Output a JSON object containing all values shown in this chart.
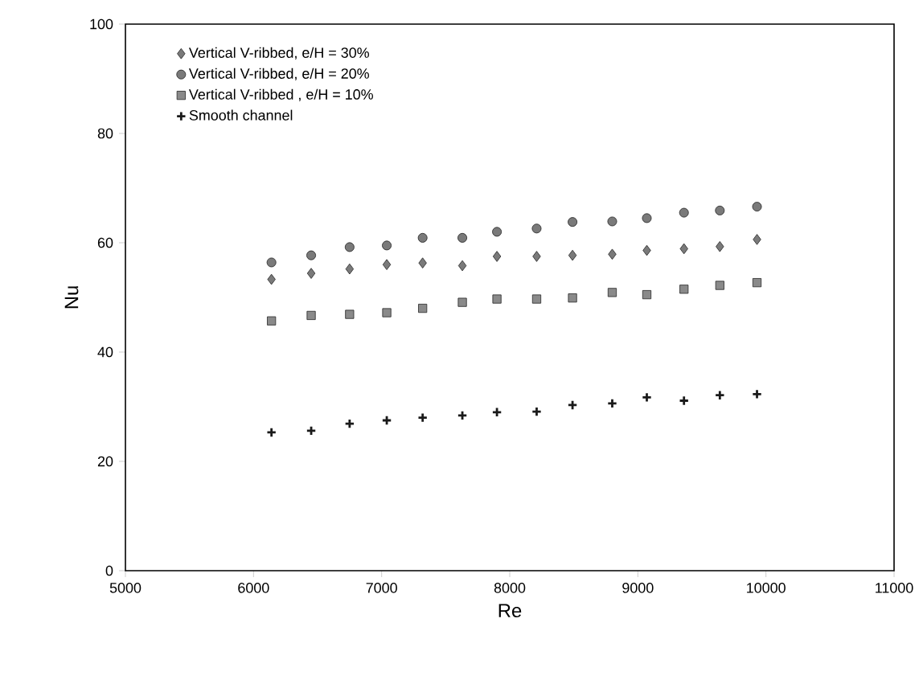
{
  "chart_data": {
    "type": "scatter",
    "xlabel": "Re",
    "ylabel": "Nu",
    "xlim": [
      5000,
      11000
    ],
    "ylim": [
      0,
      100
    ],
    "xticks": [
      5000,
      6000,
      7000,
      8000,
      9000,
      10000,
      11000
    ],
    "yticks": [
      0,
      20,
      40,
      60,
      80,
      100
    ],
    "grid": false,
    "legend": "top left",
    "x": [
      6140,
      6450,
      6750,
      7040,
      7320,
      7630,
      7900,
      8210,
      8490,
      8800,
      9070,
      9360,
      9640,
      9930
    ],
    "series": [
      {
        "name": "Vertical V-ribbed, e/H = 30%",
        "color": "#7a7a7a",
        "marker": "diamond",
        "values": [
          53.3,
          54.4,
          55.2,
          56.0,
          56.3,
          55.8,
          57.5,
          57.5,
          57.7,
          57.9,
          58.6,
          58.9,
          59.3,
          60.6
        ]
      },
      {
        "name": "Vertical V-ribbed, e/H = 20%",
        "color": "#7a7a7a",
        "marker": "circle",
        "values": [
          56.4,
          57.7,
          59.2,
          59.5,
          60.9,
          60.9,
          62.0,
          62.6,
          63.8,
          63.9,
          64.5,
          65.5,
          65.9,
          66.6
        ]
      },
      {
        "name": "Vertical V-ribbed , e/H = 10%",
        "color": "#8a8a8a",
        "marker": "square",
        "values": [
          45.7,
          46.7,
          46.9,
          47.2,
          48.0,
          49.1,
          49.7,
          49.7,
          49.9,
          50.9,
          50.5,
          51.5,
          52.2,
          52.7
        ]
      },
      {
        "name": "Smooth channel",
        "color": "#1a1a1a",
        "marker": "cross",
        "values": [
          25.3,
          25.6,
          26.9,
          27.5,
          28.0,
          28.4,
          29.0,
          29.1,
          30.3,
          30.6,
          31.7,
          31.1,
          32.1,
          32.3
        ]
      }
    ]
  }
}
